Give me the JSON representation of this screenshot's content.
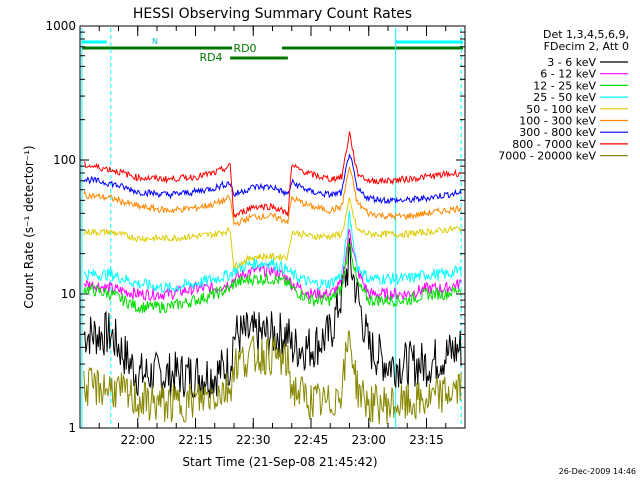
{
  "chart_data": {
    "type": "line",
    "title": "HESSI Observing Summary Count Rates",
    "xlabel": "Start Time (21-Sep-08 21:45:42)",
    "ylabel": "Count Rate (s⁻¹ detector⁻¹)",
    "yscale": "log",
    "ylim": [
      1,
      1000
    ],
    "xlim": [
      "21:45",
      "23:25"
    ],
    "x_tick_labels": [
      "22:00",
      "22:15",
      "22:30",
      "22:45",
      "23:00",
      "23:15"
    ],
    "y_tick_labels": [
      "1",
      "10",
      "100",
      "1000"
    ],
    "grid": false,
    "legend_position": "right",
    "legend_header": [
      "Det 1,3,4,5,6,9,",
      "FDecim 2, Att 0"
    ],
    "flag_labels": {
      "night": "N",
      "rd0": "RD0",
      "rd4": "RD4"
    },
    "x": [
      "21:46",
      "21:53",
      "22:00",
      "22:08",
      "22:15",
      "22:20",
      "22:24",
      "22:25",
      "22:30",
      "22:35",
      "22:39",
      "22:40",
      "22:45",
      "22:50",
      "22:53",
      "22:55",
      "22:57",
      "23:00",
      "23:05",
      "23:10",
      "23:15",
      "23:20",
      "23:24"
    ],
    "series": [
      {
        "name": "3 - 6 keV",
        "color": "#000000",
        "values": [
          5,
          5,
          2.5,
          2.5,
          2.5,
          2.5,
          3,
          5,
          5,
          5,
          5,
          4,
          4,
          5,
          10,
          18,
          10,
          4,
          3,
          3,
          3,
          3.5,
          4
        ]
      },
      {
        "name": "6 - 12 keV",
        "color": "#ff00ff",
        "values": [
          12,
          11,
          10,
          10,
          11,
          11,
          12,
          13,
          15,
          15,
          13,
          12,
          10,
          10,
          12,
          30,
          15,
          10,
          10,
          10,
          11,
          11,
          12
        ]
      },
      {
        "name": "12 - 25 keV",
        "color": "#00dd00",
        "values": [
          11,
          10,
          8,
          8,
          9,
          10,
          11,
          12,
          13,
          13,
          12,
          11,
          9,
          9,
          11,
          25,
          12,
          9,
          9,
          9,
          10,
          10,
          11
        ]
      },
      {
        "name": "25 - 50 keV",
        "color": "#00ffff",
        "values": [
          14,
          14,
          12,
          11,
          12,
          13,
          14,
          15,
          17,
          17,
          15,
          14,
          12,
          12,
          14,
          38,
          16,
          13,
          13,
          13,
          14,
          14,
          15
        ]
      },
      {
        "name": "50 - 100 keV",
        "color": "#ddcc00",
        "values": [
          29,
          29,
          26,
          26,
          27,
          28,
          30,
          16,
          19,
          19,
          19,
          29,
          27,
          27,
          28,
          50,
          30,
          28,
          28,
          28,
          29,
          30,
          31
        ]
      },
      {
        "name": "100 - 300 keV",
        "color": "#ff8800",
        "values": [
          55,
          52,
          45,
          42,
          44,
          47,
          52,
          33,
          38,
          38,
          35,
          52,
          45,
          42,
          45,
          90,
          48,
          40,
          38,
          38,
          40,
          42,
          44
        ]
      },
      {
        "name": "300 - 800 keV",
        "color": "#0000ff",
        "values": [
          72,
          67,
          58,
          55,
          58,
          62,
          68,
          55,
          63,
          63,
          55,
          68,
          58,
          55,
          57,
          115,
          60,
          52,
          50,
          50,
          52,
          55,
          57
        ]
      },
      {
        "name": "800 - 7000 keV",
        "color": "#ff0000",
        "values": [
          92,
          85,
          74,
          72,
          75,
          80,
          90,
          38,
          45,
          45,
          40,
          90,
          78,
          72,
          75,
          160,
          80,
          70,
          70,
          72,
          75,
          78,
          80
        ]
      },
      {
        "name": "7000 - 20000 keV",
        "color": "#888800",
        "values": [
          2,
          2,
          1.6,
          1.5,
          1.6,
          1.8,
          2,
          3,
          3.5,
          3.5,
          3,
          2,
          1.6,
          1.5,
          2,
          5,
          2,
          1.5,
          1.5,
          1.5,
          1.6,
          1.8,
          2
        ]
      }
    ]
  },
  "footer": {
    "timestamp": "26-Dec-2009 14:46"
  }
}
